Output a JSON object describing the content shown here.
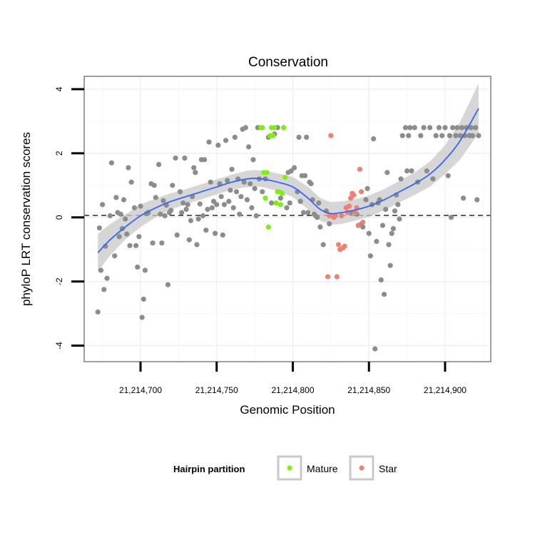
{
  "chart_data": {
    "type": "scatter",
    "title": "Conservation",
    "xlabel": "Genomic Position",
    "ylabel": "phyloP LRT conservation scores",
    "xlim": [
      21214663,
      21214930
    ],
    "ylim": [
      -4.5,
      4.4
    ],
    "x_ticks": [
      21214700,
      21214750,
      21214800,
      21214850,
      21214900
    ],
    "x_tick_labels": [
      "21,214,700",
      "21,214,750",
      "21,214,800",
      "21,214,850",
      "21,214,900"
    ],
    "y_ticks": [
      -4,
      -2,
      0,
      2,
      4
    ],
    "y_tick_labels": [
      "-4",
      "-2",
      "0",
      "2",
      "4"
    ],
    "grid": true,
    "reference_line": {
      "y": 0,
      "style": "dashed"
    },
    "legend": {
      "title": "Hairpin partition",
      "position": "bottom",
      "entries": [
        {
          "label": "Mature",
          "color": "#7cf00f"
        },
        {
          "label": "Star",
          "color": "#f08070"
        }
      ]
    },
    "colors": {
      "other": "#8c8c8c",
      "smooth": "#3366ff",
      "ribbon": "#c8c8c8"
    },
    "series": [
      {
        "name": "",
        "color": "#8c8c8c",
        "points": [
          [
            21214672,
            -2.95
          ],
          [
            21214673,
            -0.33
          ],
          [
            21214674,
            -1.65
          ],
          [
            21214675,
            0.4
          ],
          [
            21214676,
            -2.25
          ],
          [
            21214677,
            -0.9
          ],
          [
            21214678,
            -1.9
          ],
          [
            21214680,
            0.05
          ],
          [
            21214681,
            1.7
          ],
          [
            21214683,
            -1.2
          ],
          [
            21214684,
            0.62
          ],
          [
            21214685,
            0.15
          ],
          [
            21214686,
            -0.6
          ],
          [
            21214687,
            0.1
          ],
          [
            21214688,
            -0.35
          ],
          [
            21214689,
            0.55
          ],
          [
            21214690,
            -0.05
          ],
          [
            21214691,
            -0.52
          ],
          [
            21214692,
            1.55
          ],
          [
            21214693,
            -0.88
          ],
          [
            21214694,
            1.1
          ],
          [
            21214696,
            0.3
          ],
          [
            21214697,
            -0.88
          ],
          [
            21214698,
            -1.55
          ],
          [
            21214699,
            -0.6
          ],
          [
            21214700,
            0.35
          ],
          [
            21214701,
            -3.12
          ],
          [
            21214702,
            -2.55
          ],
          [
            21214703,
            -1.65
          ],
          [
            21214704,
            0.12
          ],
          [
            21214705,
            0.15
          ],
          [
            21214707,
            1.05
          ],
          [
            21214708,
            -0.8
          ],
          [
            21214709,
            1.0
          ],
          [
            21214710,
            0.62
          ],
          [
            21214712,
            1.65
          ],
          [
            21214713,
            0.1
          ],
          [
            21214714,
            -0.8
          ],
          [
            21214715,
            0.52
          ],
          [
            21214716,
            0.05
          ],
          [
            21214717,
            0.38
          ],
          [
            21214718,
            -2.1
          ],
          [
            21214719,
            0.15
          ],
          [
            21214720,
            0.22
          ],
          [
            21214721,
            1.0
          ],
          [
            21214723,
            1.85
          ],
          [
            21214724,
            -0.55
          ],
          [
            21214726,
            0.8
          ],
          [
            21214727,
            0.15
          ],
          [
            21214728,
            0.45
          ],
          [
            21214729,
            1.85
          ],
          [
            21214730,
            0.25
          ],
          [
            21214731,
            0.4
          ],
          [
            21214732,
            -0.7
          ],
          [
            21214733,
            -0.1
          ],
          [
            21214734,
            0.65
          ],
          [
            21214735,
            1.55
          ],
          [
            21214736,
            1.4
          ],
          [
            21214737,
            -0.85
          ],
          [
            21214738,
            -0.05
          ],
          [
            21214739,
            0.42
          ],
          [
            21214740,
            1.8
          ],
          [
            21214741,
            0.05
          ],
          [
            21214742,
            1.8
          ],
          [
            21214743,
            -0.4
          ],
          [
            21214744,
            0.25
          ],
          [
            21214745,
            2.35
          ],
          [
            21214746,
            1.1
          ],
          [
            21214747,
            0.3
          ],
          [
            21214748,
            0.5
          ],
          [
            21214749,
            -0.5
          ],
          [
            21214750,
            0.4
          ],
          [
            21214751,
            2.25
          ],
          [
            21214752,
            1.05
          ],
          [
            21214753,
            0.65
          ],
          [
            21214754,
            -0.55
          ],
          [
            21214755,
            0.4
          ],
          [
            21214756,
            2.4
          ],
          [
            21214757,
            1.15
          ],
          [
            21214758,
            0.5
          ],
          [
            21214759,
            0.85
          ],
          [
            21214760,
            1.5
          ],
          [
            21214761,
            0.3
          ],
          [
            21214762,
            2.5
          ],
          [
            21214763,
            0.8
          ],
          [
            21214764,
            1.2
          ],
          [
            21214765,
            0.1
          ],
          [
            21214766,
            0.65
          ],
          [
            21214767,
            2.75
          ],
          [
            21214768,
            1.1
          ],
          [
            21214769,
            2.8
          ],
          [
            21214770,
            0.55
          ],
          [
            21214771,
            2.2
          ],
          [
            21214772,
            1.05
          ],
          [
            21214773,
            0.3
          ],
          [
            21214774,
            1.8
          ],
          [
            21214775,
            0.9
          ],
          [
            21214776,
            0.05
          ],
          [
            21214777,
            2.8
          ],
          [
            21214778,
            1.2
          ],
          [
            21214780,
            0.8
          ],
          [
            21214782,
            1.2
          ],
          [
            21214784,
            2.5
          ],
          [
            21214786,
            0.45
          ],
          [
            21214788,
            2.6
          ],
          [
            21214790,
            2.8
          ],
          [
            21214792,
            0.6
          ],
          [
            21214794,
            2.8
          ],
          [
            21214796,
            0.3
          ],
          [
            21214797,
            1.4
          ],
          [
            21214798,
            0.45
          ],
          [
            21214799,
            1.45
          ],
          [
            21214801,
            1.55
          ],
          [
            21214803,
            0.8
          ],
          [
            21214804,
            2.5
          ],
          [
            21214805,
            0.5
          ],
          [
            21214806,
            1.3
          ],
          [
            21214807,
            0.15
          ],
          [
            21214808,
            1.3
          ],
          [
            21214809,
            2.5
          ],
          [
            21214810,
            0.15
          ],
          [
            21214811,
            1.1
          ],
          [
            21214812,
            1.05
          ],
          [
            21214813,
            0.55
          ],
          [
            21214814,
            0.1
          ],
          [
            21214815,
            0.05
          ],
          [
            21214816,
            0.0
          ],
          [
            21214817,
            0.45
          ],
          [
            21214818,
            -0.3
          ],
          [
            21214820,
            -0.85
          ],
          [
            21214822,
            0.2
          ],
          [
            21214824,
            -0.2
          ],
          [
            21214838,
            0.15
          ],
          [
            21214842,
            0.1
          ],
          [
            21214845,
            -0.2
          ],
          [
            21214846,
            -0.3
          ],
          [
            21214848,
            0.55
          ],
          [
            21214849,
            0.9
          ],
          [
            21214850,
            -0.5
          ],
          [
            21214851,
            -1.2
          ],
          [
            21214852,
            0.4
          ],
          [
            21214853,
            2.45
          ],
          [
            21214854,
            -4.1
          ],
          [
            21214855,
            -0.75
          ],
          [
            21214856,
            0.45
          ],
          [
            21214857,
            0.55
          ],
          [
            21214858,
            -1.95
          ],
          [
            21214859,
            -0.25
          ],
          [
            21214860,
            -2.4
          ],
          [
            21214861,
            0.25
          ],
          [
            21214862,
            1.4
          ],
          [
            21214863,
            -0.85
          ],
          [
            21214864,
            -1.5
          ],
          [
            21214865,
            -0.5
          ],
          [
            21214866,
            -0.35
          ],
          [
            21214867,
            0.2
          ],
          [
            21214868,
            0.7
          ],
          [
            21214869,
            0.4
          ],
          [
            21214870,
            -0.05
          ],
          [
            21214871,
            1.2
          ],
          [
            21214872,
            2.55
          ],
          [
            21214874,
            2.8
          ],
          [
            21214875,
            1.45
          ],
          [
            21214876,
            2.55
          ],
          [
            21214877,
            2.8
          ],
          [
            21214878,
            1.45
          ],
          [
            21214880,
            2.8
          ],
          [
            21214882,
            1.1
          ],
          [
            21214884,
            2.55
          ],
          [
            21214886,
            2.8
          ],
          [
            21214888,
            1.45
          ],
          [
            21214890,
            2.8
          ],
          [
            21214892,
            1.2
          ],
          [
            21214894,
            2.55
          ],
          [
            21214896,
            2.8
          ],
          [
            21214898,
            2.55
          ],
          [
            21214900,
            2.8
          ],
          [
            21214902,
            1.3
          ],
          [
            21214903,
            2.55
          ],
          [
            21214904,
            0.0
          ],
          [
            21214905,
            2.8
          ],
          [
            21214907,
            2.55
          ],
          [
            21214908,
            2.8
          ],
          [
            21214910,
            2.55
          ],
          [
            21214911,
            2.8
          ],
          [
            21214912,
            0.6
          ],
          [
            21214913,
            2.55
          ],
          [
            21214914,
            2.8
          ],
          [
            21214916,
            2.55
          ],
          [
            21214917,
            2.8
          ],
          [
            21214918,
            2.55
          ],
          [
            21214920,
            2.8
          ],
          [
            21214921,
            0.55
          ],
          [
            21214922,
            2.55
          ]
        ]
      },
      {
        "name": "Mature",
        "color": "#7cf00f",
        "points": [
          [
            21214779,
            2.8
          ],
          [
            21214780,
            2.8
          ],
          [
            21214781,
            1.4
          ],
          [
            21214782,
            0.6
          ],
          [
            21214783,
            1.4
          ],
          [
            21214784,
            -0.3
          ],
          [
            21214785,
            2.55
          ],
          [
            21214786,
            2.8
          ],
          [
            21214787,
            2.55
          ],
          [
            21214788,
            2.8
          ],
          [
            21214789,
            0.45
          ],
          [
            21214790,
            0.8
          ],
          [
            21214791,
            0.8
          ],
          [
            21214792,
            0.4
          ],
          [
            21214793,
            0.75
          ],
          [
            21214794,
            2.8
          ],
          [
            21214795,
            1.25
          ]
        ]
      },
      {
        "name": "Star",
        "color": "#f08070",
        "points": [
          [
            21214823,
            -1.85
          ],
          [
            21214824,
            0.05
          ],
          [
            21214825,
            2.55
          ],
          [
            21214826,
            0.05
          ],
          [
            21214827,
            0.0
          ],
          [
            21214828,
            0.05
          ],
          [
            21214829,
            -1.85
          ],
          [
            21214830,
            -0.85
          ],
          [
            21214831,
            -1.0
          ],
          [
            21214832,
            0.05
          ],
          [
            21214833,
            -0.95
          ],
          [
            21214834,
            -0.9
          ],
          [
            21214835,
            0.3
          ],
          [
            21214836,
            0.15
          ],
          [
            21214837,
            0.35
          ],
          [
            21214838,
            0.6
          ],
          [
            21214839,
            0.75
          ],
          [
            21214840,
            0.7
          ],
          [
            21214841,
            0.15
          ],
          [
            21214842,
            0.3
          ],
          [
            21214843,
            -0.25
          ],
          [
            21214844,
            1.5
          ],
          [
            21214845,
            0.8
          ],
          [
            21214846,
            -0.15
          ]
        ]
      }
    ],
    "smooth": {
      "x": [
        21214672,
        21214680,
        21214690,
        21214700,
        21214710,
        21214720,
        21214730,
        21214740,
        21214750,
        21214760,
        21214770,
        21214775,
        21214780,
        21214790,
        21214800,
        21214810,
        21214818,
        21214825,
        21214832,
        21214840,
        21214850,
        21214860,
        21214870,
        21214880,
        21214890,
        21214900,
        21214910,
        21214922
      ],
      "y": [
        -1.1,
        -0.7,
        -0.3,
        0.05,
        0.3,
        0.5,
        0.65,
        0.8,
        0.95,
        1.1,
        1.2,
        1.22,
        1.2,
        1.1,
        0.95,
        0.6,
        0.25,
        0.12,
        0.15,
        0.22,
        0.35,
        0.55,
        0.8,
        1.05,
        1.35,
        1.8,
        2.4,
        3.4
      ],
      "se": [
        0.3,
        0.25,
        0.2,
        0.18,
        0.15,
        0.13,
        0.12,
        0.12,
        0.12,
        0.12,
        0.13,
        0.13,
        0.13,
        0.14,
        0.16,
        0.18,
        0.18,
        0.18,
        0.18,
        0.17,
        0.17,
        0.17,
        0.17,
        0.18,
        0.2,
        0.23,
        0.3,
        0.4
      ]
    }
  }
}
